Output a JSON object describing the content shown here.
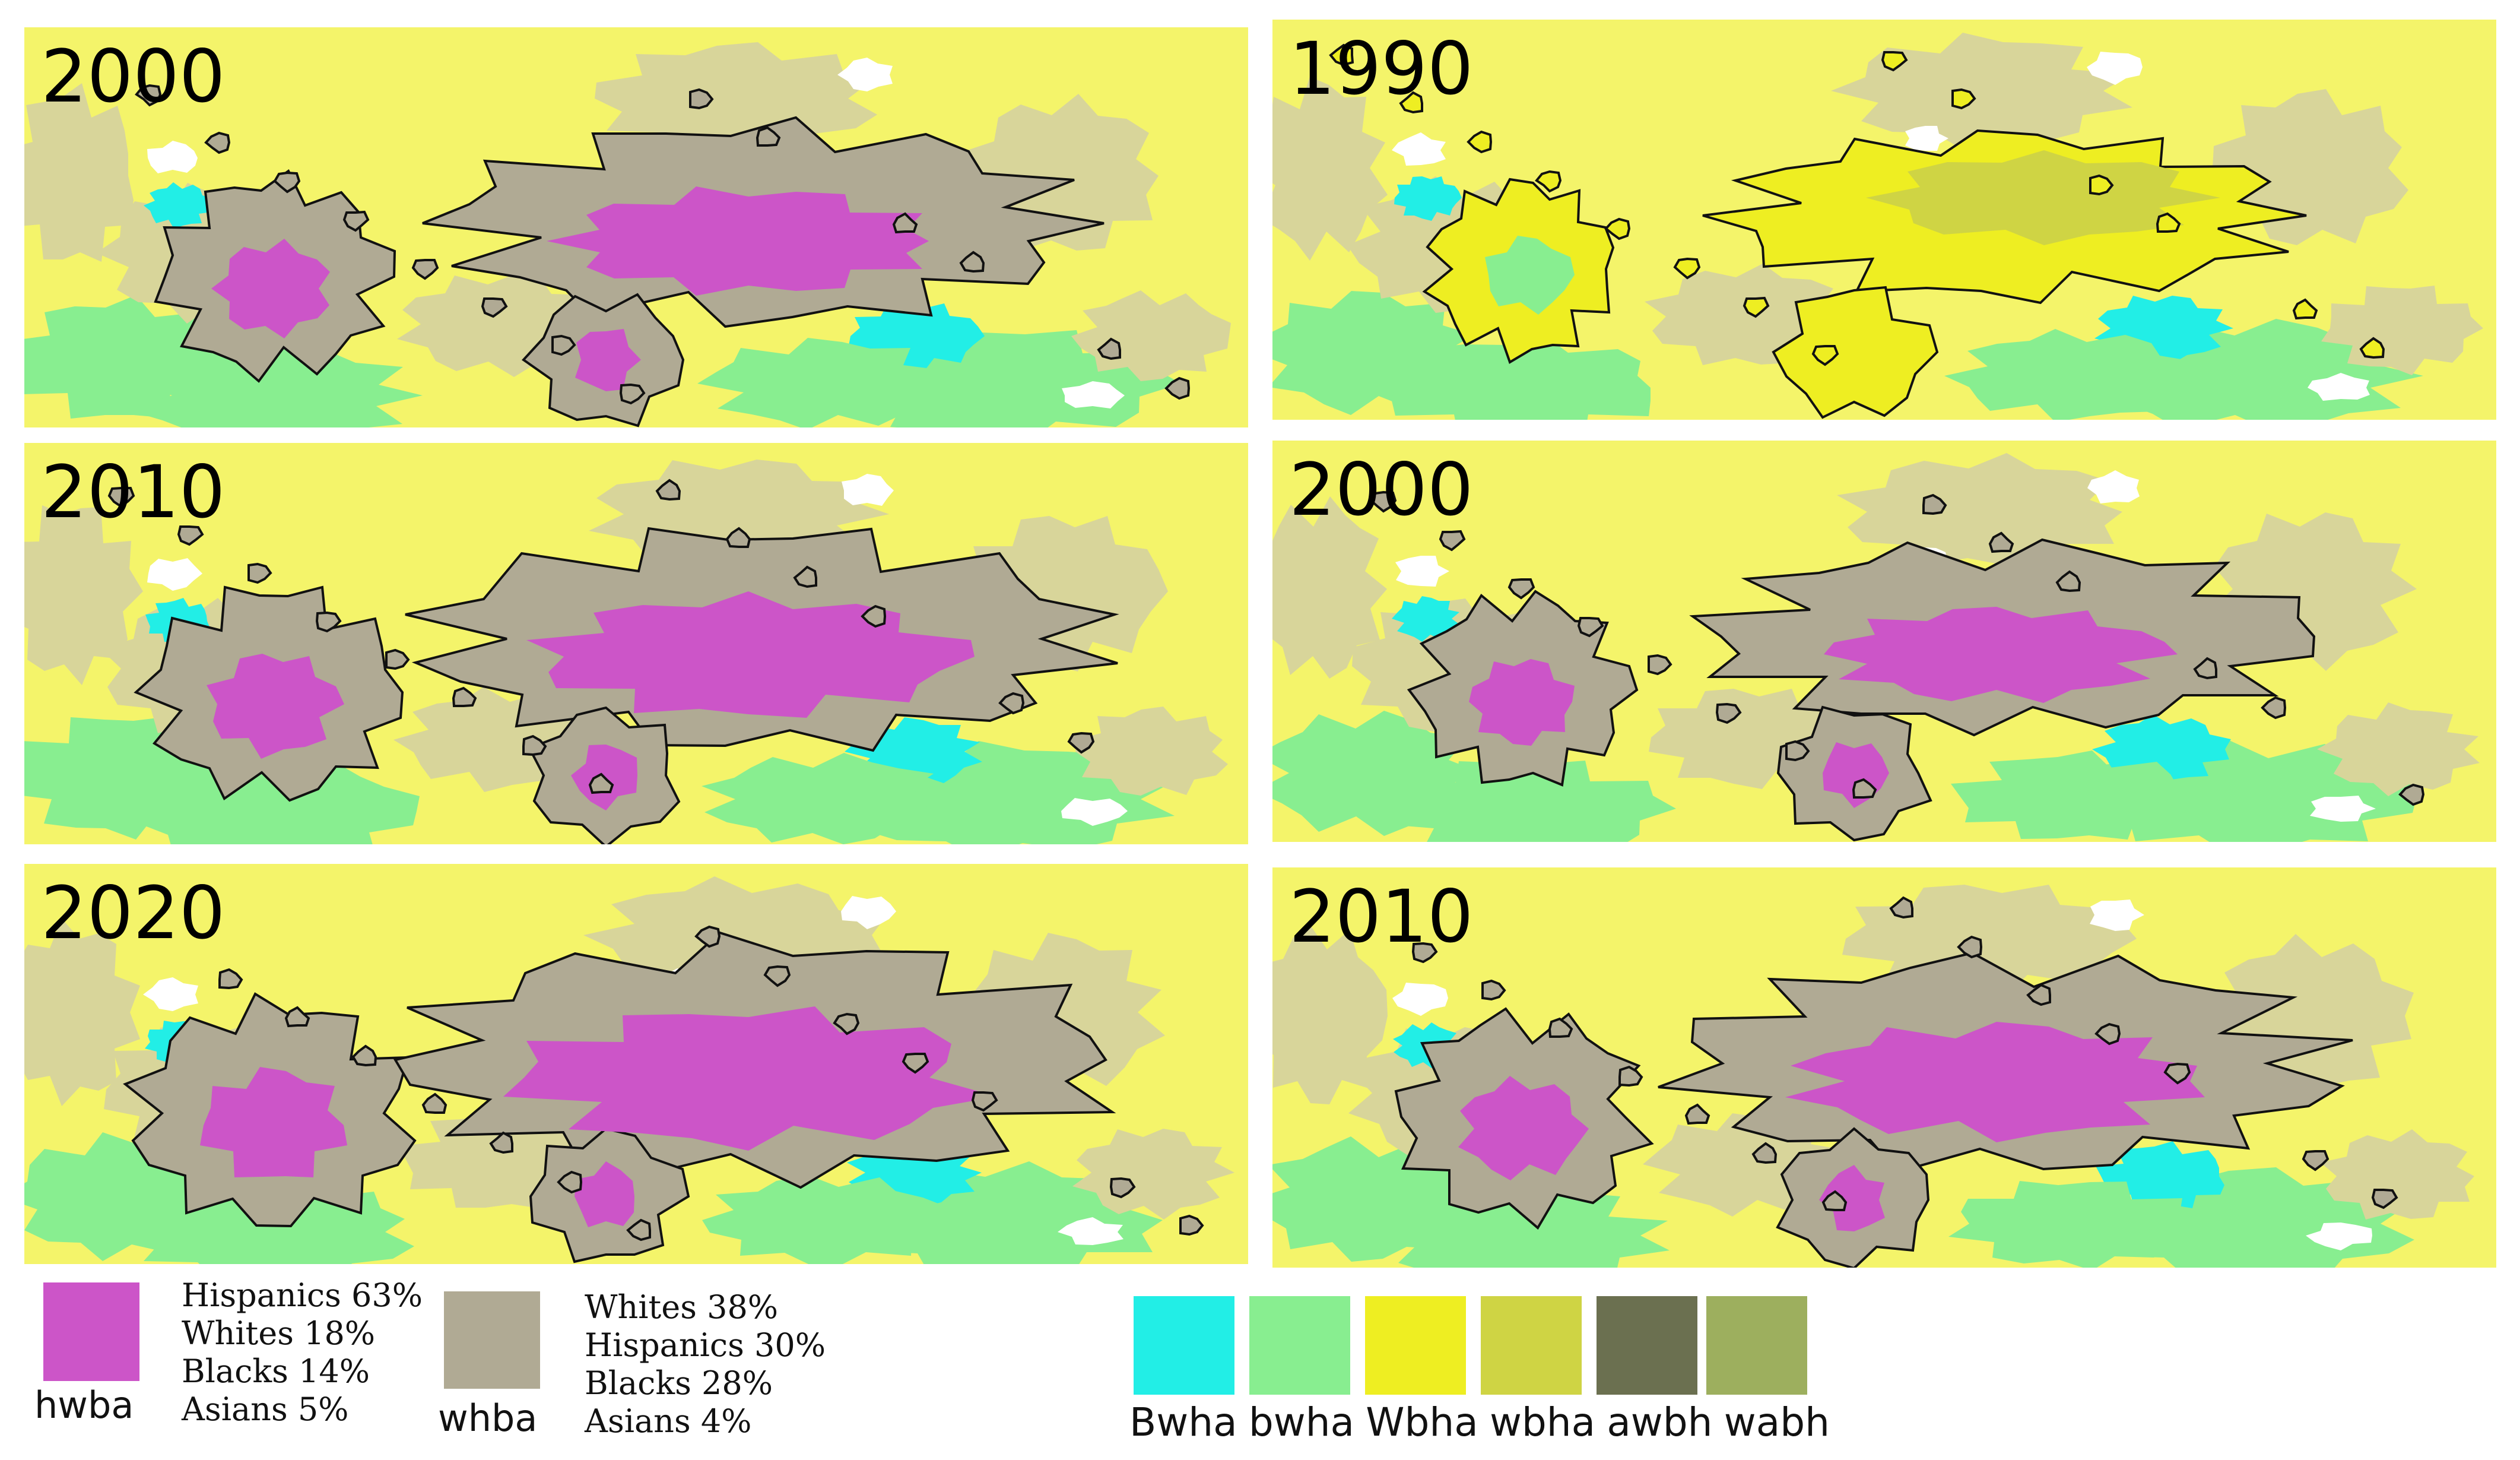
{
  "panels": {
    "l1": {
      "year": "2000"
    },
    "l2": {
      "year": "2010"
    },
    "l3": {
      "year": "2020"
    },
    "r1": {
      "year": "1990"
    },
    "r2": {
      "year": "2000"
    },
    "r3": {
      "year": "2010"
    }
  },
  "colors": {
    "background": "#f4f46a",
    "hwba": "#cc55c8",
    "whba": "#b0aa94",
    "Bwha": "#22eee6",
    "bwha": "#88ee90",
    "Wbha": "#eeee22",
    "wbha": "#cfd444",
    "awbh": "#6b7050",
    "wabh": "#9daf5e",
    "light_tan": "#d8d59a",
    "outline": "#111111"
  },
  "legend": {
    "hwba": {
      "code": "hwba",
      "lines": [
        "Hispanics 63%",
        "Whites 18%",
        "Blacks 14%",
        "Asians 5%"
      ]
    },
    "whba": {
      "code": "whba",
      "lines": [
        "Whites 38%",
        "Hispanics 30%",
        "Blacks 28%",
        "Asians 4%"
      ]
    },
    "codes": [
      "Bwha",
      "bwha",
      "Wbha",
      "wbha",
      "awbh",
      "wabh"
    ]
  }
}
